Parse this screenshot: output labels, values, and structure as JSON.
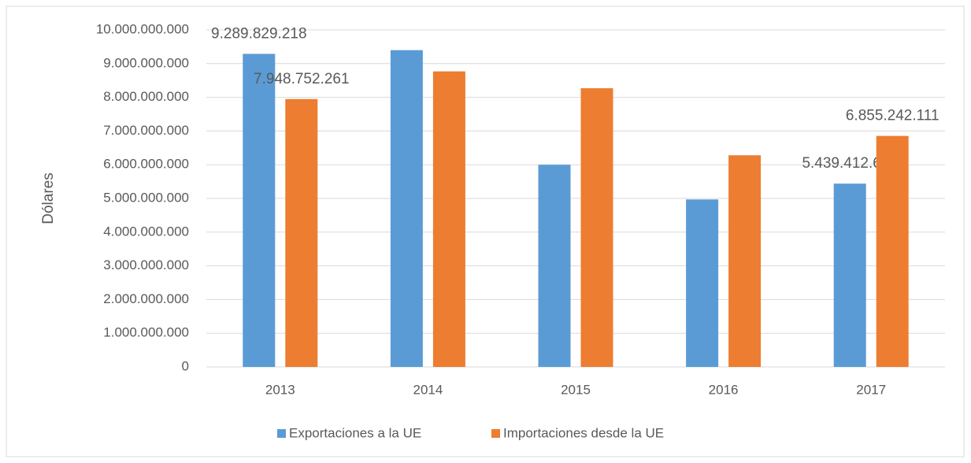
{
  "chart_data": {
    "type": "bar",
    "y_label": "Dólares",
    "categories": [
      "2013",
      "2014",
      "2015",
      "2016",
      "2017"
    ],
    "series": [
      {
        "name": "Exportaciones a la UE",
        "color": "#5b9bd5",
        "values": [
          9289829218,
          9400000000,
          6000000000,
          4970000000,
          5439412631
        ],
        "value_labels": [
          "9.289.829.218",
          null,
          null,
          null,
          "5.439.412.631"
        ]
      },
      {
        "name": "Importaciones desde la UE",
        "color": "#ed7d31",
        "values": [
          7948752261,
          8770000000,
          8270000000,
          6280000000,
          6855242111
        ],
        "value_labels": [
          "7.948.752.261",
          null,
          null,
          null,
          "6.855.242.111"
        ]
      }
    ],
    "ylim": [
      0,
      10000000000
    ],
    "yticks": [
      0,
      {
        "value": 1000000000,
        "label": "1.000.000.000"
      },
      {
        "value": 2000000000,
        "label": "2.000.000.000"
      },
      {
        "value": 3000000000,
        "label": "3.000.000.000"
      },
      {
        "value": 4000000000,
        "label": "4.000.000.000"
      },
      {
        "value": 5000000000,
        "label": "5.000.000.000"
      },
      {
        "value": 6000000000,
        "label": "6.000.000.000"
      },
      {
        "value": 7000000000,
        "label": "7.000.000.000"
      },
      {
        "value": 8000000000,
        "label": "8.000.000.000"
      },
      {
        "value": 9000000000,
        "label": "9.000.000.000"
      },
      {
        "value": 10000000000,
        "label": "10.000.000.000"
      }
    ],
    "grid": true,
    "legend": "bottom"
  }
}
